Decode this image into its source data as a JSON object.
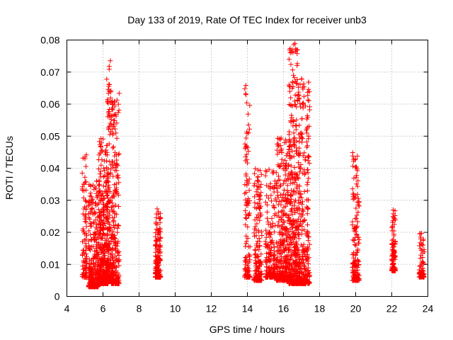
{
  "chart_data": {
    "type": "scatter",
    "title": "Day 133 of 2019, Rate Of TEC Index for receiver unb3",
    "xlabel": "GPS time / hours",
    "ylabel": "ROTI / TECUs",
    "xlim": [
      4,
      24
    ],
    "ylim": [
      0,
      0.08
    ],
    "x_ticks": [
      "4",
      "6",
      "8",
      "10",
      "12",
      "14",
      "16",
      "18",
      "20",
      "22",
      "24"
    ],
    "y_ticks": [
      "0",
      "0.01",
      "0.02",
      "0.03",
      "0.04",
      "0.05",
      "0.06",
      "0.07",
      "0.08"
    ],
    "grid": true,
    "marker": "+",
    "marker_color": "#ff0000",
    "series": [
      {
        "clusters": [
          {
            "x_start": 4.85,
            "x_end": 5.1,
            "y_min": 0.006,
            "y_max": 0.045,
            "n": 90
          },
          {
            "x_start": 5.2,
            "x_end": 5.75,
            "y_min": 0.003,
            "y_max": 0.036,
            "n": 260
          },
          {
            "x_start": 5.75,
            "x_end": 6.3,
            "y_min": 0.004,
            "y_max": 0.05,
            "n": 380
          },
          {
            "x_start": 6.2,
            "x_end": 6.45,
            "y_min": 0.005,
            "y_max": 0.075,
            "n": 160
          },
          {
            "x_start": 6.45,
            "x_end": 6.9,
            "y_min": 0.004,
            "y_max": 0.065,
            "n": 240
          },
          {
            "x_start": 8.9,
            "x_end": 9.2,
            "y_min": 0.006,
            "y_max": 0.028,
            "n": 160
          },
          {
            "x_start": 13.85,
            "x_end": 14.15,
            "y_min": 0.006,
            "y_max": 0.07,
            "n": 120
          },
          {
            "x_start": 14.35,
            "x_end": 14.8,
            "y_min": 0.005,
            "y_max": 0.04,
            "n": 170
          },
          {
            "x_start": 15.0,
            "x_end": 15.55,
            "y_min": 0.006,
            "y_max": 0.04,
            "n": 180
          },
          {
            "x_start": 15.6,
            "x_end": 16.3,
            "y_min": 0.005,
            "y_max": 0.05,
            "n": 340
          },
          {
            "x_start": 16.3,
            "x_end": 16.8,
            "y_min": 0.004,
            "y_max": 0.079,
            "n": 380
          },
          {
            "x_start": 16.8,
            "x_end": 17.45,
            "y_min": 0.004,
            "y_max": 0.068,
            "n": 330
          },
          {
            "x_start": 19.8,
            "x_end": 20.2,
            "y_min": 0.005,
            "y_max": 0.047,
            "n": 160
          },
          {
            "x_start": 22.0,
            "x_end": 22.2,
            "y_min": 0.008,
            "y_max": 0.027,
            "n": 110
          },
          {
            "x_start": 23.5,
            "x_end": 23.8,
            "y_min": 0.006,
            "y_max": 0.02,
            "n": 70
          }
        ]
      }
    ]
  }
}
